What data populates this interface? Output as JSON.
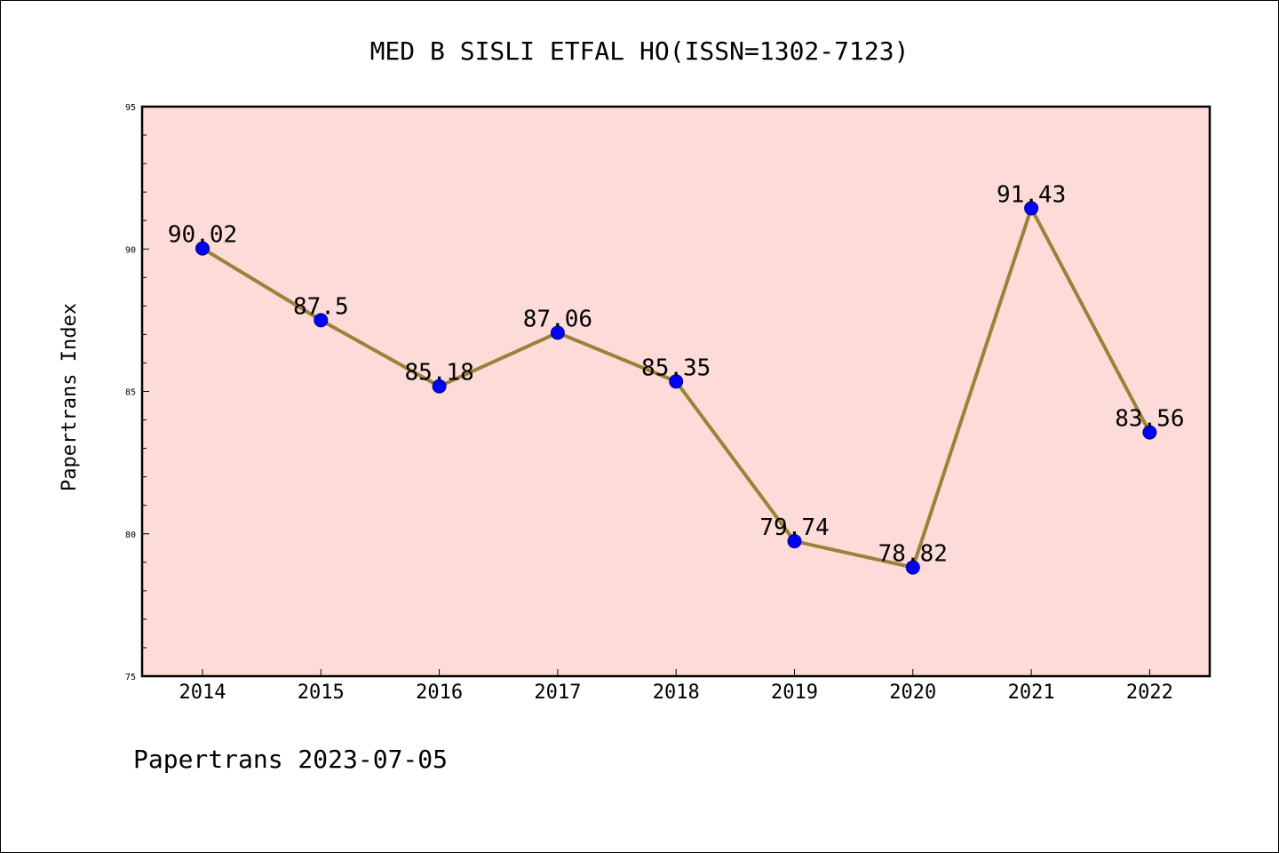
{
  "chart_data": {
    "type": "line",
    "title": "MED B SISLI ETFAL HO(ISSN=1302-7123)",
    "xlabel": "",
    "ylabel": "Papertrans Index",
    "categories": [
      "2014",
      "2015",
      "2016",
      "2017",
      "2018",
      "2019",
      "2020",
      "2021",
      "2022"
    ],
    "series": [
      {
        "values": [
          90.02,
          87.5,
          85.18,
          87.06,
          85.35,
          79.74,
          78.82,
          91.43,
          83.56
        ],
        "labels": [
          "90.02",
          "87.5",
          "85.18",
          "87.06",
          "85.35",
          "79.74",
          "78.82",
          "91.43",
          "83.56"
        ]
      }
    ],
    "ylim": [
      75,
      95
    ],
    "yticks": [
      "75",
      "80",
      "85",
      "90",
      "95"
    ],
    "grid": false,
    "colors": {
      "plot_background": "#fddbd8",
      "line": "#9b8139",
      "marker": "#0000ff",
      "axes": "#000000"
    }
  },
  "footer": "Papertrans 2023-07-05"
}
